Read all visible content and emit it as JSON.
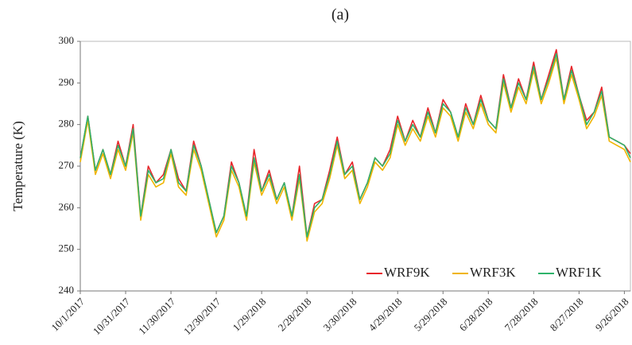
{
  "chart_data": {
    "type": "line",
    "title": "(a)",
    "y_label": "Temperature (K)",
    "x": [
      "10/1/2017",
      "10/6/2017",
      "10/11/2017",
      "10/16/2017",
      "10/21/2017",
      "10/26/2017",
      "10/31/2017",
      "11/5/2017",
      "11/10/2017",
      "11/15/2017",
      "11/20/2017",
      "11/25/2017",
      "11/30/2017",
      "12/5/2017",
      "12/10/2017",
      "12/15/2017",
      "12/20/2017",
      "12/25/2017",
      "12/30/2017",
      "1/4/2018",
      "1/9/2018",
      "1/14/2018",
      "1/19/2018",
      "1/24/2018",
      "1/29/2018",
      "2/3/2018",
      "2/8/2018",
      "2/13/2018",
      "2/18/2018",
      "2/23/2018",
      "2/28/2018",
      "3/5/2018",
      "3/10/2018",
      "3/15/2018",
      "3/20/2018",
      "3/25/2018",
      "3/30/2018",
      "4/4/2018",
      "4/9/2018",
      "4/14/2018",
      "4/19/2018",
      "4/24/2018",
      "4/29/2018",
      "5/4/2018",
      "5/9/2018",
      "5/14/2018",
      "5/19/2018",
      "5/24/2018",
      "5/29/2018",
      "6/3/2018",
      "6/8/2018",
      "6/13/2018",
      "6/18/2018",
      "6/23/2018",
      "6/28/2018",
      "7/3/2018",
      "7/8/2018",
      "7/13/2018",
      "7/18/2018",
      "7/23/2018",
      "7/28/2018",
      "8/2/2018",
      "8/7/2018",
      "8/12/2018",
      "8/17/2018",
      "8/22/2018",
      "8/27/2018",
      "9/1/2018",
      "9/6/2018",
      "9/11/2018",
      "9/16/2018",
      "9/21/2018",
      "9/26/2018",
      "9/30/2018"
    ],
    "series": [
      {
        "name": "WRF9K",
        "color": "#e8262b",
        "values": [
          272,
          282,
          269,
          274,
          268,
          276,
          270,
          280,
          258,
          270,
          266,
          268,
          274,
          267,
          264,
          276,
          270,
          262,
          254,
          258,
          271,
          266,
          258,
          274,
          264,
          269,
          262,
          266,
          258,
          270,
          253,
          261,
          262,
          269,
          277,
          268,
          271,
          262,
          266,
          272,
          270,
          274,
          282,
          276,
          281,
          277,
          284,
          278,
          286,
          283,
          277,
          285,
          280,
          287,
          281,
          279,
          292,
          284,
          291,
          286,
          295,
          286,
          292,
          298,
          286,
          294,
          287,
          281,
          283,
          289,
          277,
          276,
          275,
          273
        ]
      },
      {
        "name": "WRF3K",
        "color": "#f0b400",
        "values": [
          271,
          281,
          268,
          273,
          267,
          274,
          269,
          278,
          257,
          268,
          265,
          266,
          273,
          265,
          263,
          274,
          269,
          261,
          253,
          257,
          269,
          265,
          257,
          271,
          263,
          267,
          261,
          265,
          257,
          267,
          252,
          259,
          261,
          267,
          275,
          267,
          269,
          261,
          265,
          271,
          269,
          272,
          280,
          275,
          279,
          276,
          282,
          277,
          284,
          282,
          276,
          283,
          279,
          285,
          280,
          278,
          290,
          283,
          289,
          285,
          293,
          285,
          290,
          296,
          285,
          292,
          286,
          279,
          282,
          287,
          276,
          275,
          274,
          271
        ]
      },
      {
        "name": "WRF1K",
        "color": "#2fb36a",
        "values": [
          272,
          282,
          269,
          274,
          268,
          275,
          270,
          279,
          258,
          269,
          266,
          267,
          274,
          266,
          264,
          275,
          270,
          262,
          254,
          258,
          270,
          266,
          258,
          272,
          264,
          268,
          262,
          266,
          258,
          268,
          253,
          260,
          262,
          268,
          276,
          268,
          270,
          262,
          266,
          272,
          270,
          273,
          281,
          276,
          280,
          277,
          283,
          278,
          285,
          283,
          277,
          284,
          280,
          286,
          281,
          279,
          291,
          284,
          290,
          286,
          294,
          286,
          291,
          297,
          286,
          293,
          287,
          280,
          283,
          288,
          277,
          276,
          275,
          272
        ]
      }
    ],
    "xlim": [
      "10/1/2017",
      "9/30/2018"
    ],
    "xticks": [
      "10/1/2017",
      "10/31/2017",
      "11/30/2017",
      "12/30/2017",
      "1/29/2018",
      "2/28/2018",
      "3/30/2018",
      "4/29/2018",
      "5/29/2018",
      "6/28/2018",
      "7/28/2018",
      "8/27/2018",
      "9/26/2018"
    ],
    "ylim": [
      240,
      300
    ],
    "yticks": [
      240,
      250,
      260,
      270,
      280,
      290,
      300
    ],
    "legend": "lower right"
  }
}
